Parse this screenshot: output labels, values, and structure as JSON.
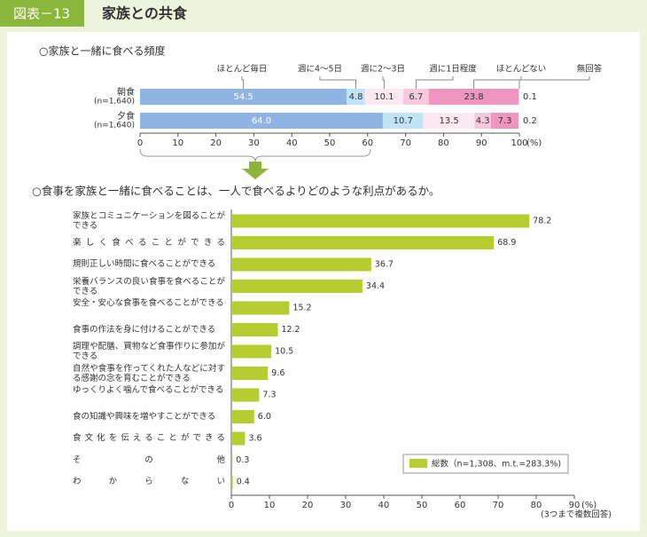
{
  "header": {
    "figure_label": "図表－13",
    "title": "家族との共食"
  },
  "chart_data": [
    {
      "type": "stacked_bar",
      "orientation": "horizontal",
      "title": "○家族と一緒に食べる頻度",
      "categories": [
        "朝食",
        "夕食"
      ],
      "category_notes": [
        "(n=1,640)",
        "(n=1,640)"
      ],
      "series": [
        {
          "name": "ほとんど毎日",
          "color": "#8fb4e3",
          "values": [
            54.5,
            64
          ],
          "value_labels": [
            "54.5",
            "64.0"
          ]
        },
        {
          "name": "週に4～5日",
          "color": "#bfe4f6",
          "values": [
            4.8,
            10.7
          ],
          "value_labels": [
            "4.8",
            "10.7"
          ]
        },
        {
          "name": "週に2～3日",
          "color": "#fde9f1",
          "values": [
            10.1,
            13.5
          ],
          "value_labels": [
            "10.1",
            "13.5"
          ]
        },
        {
          "name": "週に1日程度",
          "color": "#f8c9dd",
          "values": [
            6.7,
            4.3
          ],
          "value_labels": [
            "6.7",
            "4.3"
          ]
        },
        {
          "name": "ほとんどない",
          "color": "#ef96c0",
          "values": [
            23.8,
            7.3
          ],
          "value_labels": [
            "23.8",
            "7.3"
          ]
        },
        {
          "name": "無回答",
          "color": "#ffffff",
          "values": [
            0.1,
            0.2
          ],
          "value_labels": [
            "0.1",
            "0.2"
          ]
        }
      ],
      "xlim": [
        0,
        100
      ],
      "xticks": [
        0,
        10,
        20,
        30,
        40,
        50,
        60,
        70,
        80,
        90,
        100
      ],
      "unit": "(%)"
    },
    {
      "type": "bar",
      "orientation": "horizontal",
      "title": "○食事を家族と一緒に食べることは、一人で食べるよりどのような利点があるか。",
      "categories": [
        "家族とコミュニケーションを図ることができる",
        "楽しく食べることができる",
        "規則正しい時間に食べることができる",
        "栄養バランスの良い食事を食べることができる",
        "安全・安心な食事を食べることができる",
        "食事の作法を身に付けることができる",
        "調理や配膳、買物など食事作りに参加ができる",
        "自然や食事を作ってくれた人などに対する感謝の念を育むことができる",
        "ゆっくりよく噛んで食べることができる",
        "食の知識や興味を増やすことができる",
        "食文化を伝えることができる",
        "その他",
        "わからない"
      ],
      "series": [
        {
          "name": "総数（n=1,308、m.t.=283.3%)",
          "color": "#b6cd2f",
          "values": [
            78.2,
            68.9,
            36.7,
            34.4,
            15.2,
            12.2,
            10.5,
            9.6,
            7.3,
            6,
            3.6,
            0.3,
            0.4
          ],
          "value_labels": [
            "78.2",
            "68.9",
            "36.7",
            "34.4",
            "15.2",
            "12.2",
            "10.5",
            "9.6",
            "7.3",
            "6.0",
            "3.6",
            "0.3",
            "0.4"
          ]
        }
      ],
      "xlim": [
        0,
        90
      ],
      "xticks": [
        0,
        10,
        20,
        30,
        40,
        50,
        60,
        70,
        80,
        90
      ],
      "unit": "(%)",
      "note": "(3つまで複数回答)",
      "legend": "lower right"
    }
  ]
}
